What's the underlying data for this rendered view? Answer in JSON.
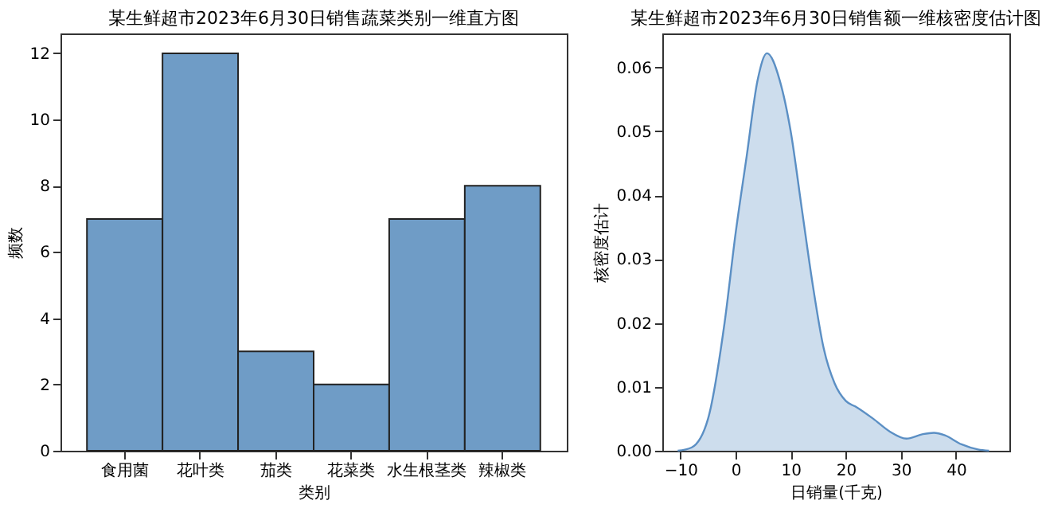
{
  "chart_data": [
    {
      "type": "bar",
      "title": "某生鲜超市2023年6月30日销售蔬菜类别一维直方图",
      "xlabel": "类别",
      "ylabel": "频数",
      "categories": [
        "食用菌",
        "花叶类",
        "茄类",
        "花菜类",
        "水生根茎类",
        "辣椒类"
      ],
      "values": [
        7,
        12,
        3,
        2,
        7,
        8
      ],
      "color": "#6f9cc6",
      "ylim": [
        0,
        12.6
      ],
      "yticks": [
        0,
        2,
        4,
        6,
        8,
        10,
        12
      ]
    },
    {
      "type": "area",
      "title": "某生鲜超市2023年6月30日销售额一维核密度估计图",
      "xlabel": "日销量(千克)",
      "ylabel": "核密度估计",
      "color": "#5b8fc4",
      "x": [
        -10.5,
        -8,
        -5,
        -2,
        0,
        2,
        4,
        5.7,
        8,
        10,
        12,
        14,
        16,
        18,
        20,
        22,
        25,
        28,
        31,
        34,
        36,
        38,
        41,
        44,
        46
      ],
      "values": [
        0,
        0.0005,
        0.005,
        0.02,
        0.034,
        0.046,
        0.058,
        0.0622,
        0.058,
        0.05,
        0.038,
        0.026,
        0.016,
        0.0105,
        0.0078,
        0.0068,
        0.005,
        0.003,
        0.0019,
        0.0026,
        0.0028,
        0.0024,
        0.001,
        0.0002,
        0
      ],
      "xlim": [
        -13.3,
        49.7
      ],
      "xticks": [
        -10,
        0,
        10,
        20,
        30,
        40
      ],
      "ylim": [
        0,
        0.0653
      ],
      "yticks": [
        {
          "value": 0,
          "label": "0.00"
        },
        {
          "value": 0.01,
          "label": "0.01"
        },
        {
          "value": 0.02,
          "label": "0.02"
        },
        {
          "value": 0.03,
          "label": "0.03"
        },
        {
          "value": 0.04,
          "label": "0.04"
        },
        {
          "value": 0.05,
          "label": "0.05"
        },
        {
          "value": 0.06,
          "label": "0.06"
        }
      ]
    }
  ]
}
